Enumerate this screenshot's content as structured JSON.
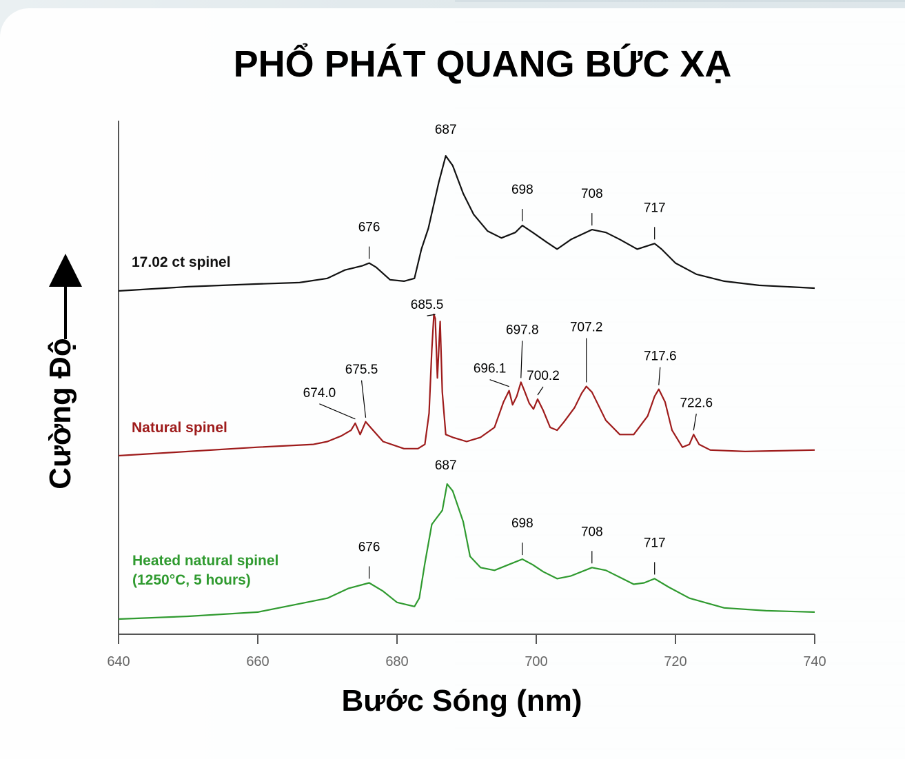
{
  "chart_data": {
    "type": "line",
    "title": "PHỔ PHÁT QUANG BỨC XẠ",
    "xlabel": "Bước Sóng (nm)",
    "ylabel": "Cường Độ",
    "xlim": [
      640,
      740
    ],
    "x_ticks": [
      "640",
      "660",
      "680",
      "700",
      "720",
      "740"
    ],
    "grid": false,
    "series": [
      {
        "name": "17.02 ct spinel",
        "color": "#111111",
        "label_lines": [
          "17.02 ct spinel"
        ],
        "points": [
          [
            640,
            0.0
          ],
          [
            650,
            0.03
          ],
          [
            660,
            0.05
          ],
          [
            666,
            0.06
          ],
          [
            670,
            0.09
          ],
          [
            672.5,
            0.15
          ],
          [
            675,
            0.18
          ],
          [
            676,
            0.2
          ],
          [
            677,
            0.17
          ],
          [
            679,
            0.08
          ],
          [
            681,
            0.07
          ],
          [
            682.5,
            0.09
          ],
          [
            683.5,
            0.3
          ],
          [
            684.5,
            0.45
          ],
          [
            686,
            0.78
          ],
          [
            687,
            0.97
          ],
          [
            688,
            0.9
          ],
          [
            689.5,
            0.7
          ],
          [
            691,
            0.55
          ],
          [
            693,
            0.43
          ],
          [
            695,
            0.38
          ],
          [
            697,
            0.42
          ],
          [
            698,
            0.47
          ],
          [
            699.5,
            0.42
          ],
          [
            701.5,
            0.35
          ],
          [
            703,
            0.3
          ],
          [
            705,
            0.37
          ],
          [
            708,
            0.44
          ],
          [
            710,
            0.42
          ],
          [
            712,
            0.37
          ],
          [
            714.5,
            0.3
          ],
          [
            717,
            0.34
          ],
          [
            718,
            0.3
          ],
          [
            720,
            0.2
          ],
          [
            723,
            0.12
          ],
          [
            727,
            0.07
          ],
          [
            732,
            0.04
          ],
          [
            740,
            0.02
          ]
        ],
        "peaks": [
          {
            "label": "676",
            "x": 676
          },
          {
            "label": "687",
            "x": 687
          },
          {
            "label": "698",
            "x": 698
          },
          {
            "label": "708",
            "x": 708
          },
          {
            "label": "717",
            "x": 717
          }
        ]
      },
      {
        "name": "Natural spinel",
        "color": "#9e1b1b",
        "label_lines": [
          "Natural spinel"
        ],
        "points": [
          [
            640,
            0.0
          ],
          [
            650,
            0.03
          ],
          [
            660,
            0.06
          ],
          [
            668,
            0.08
          ],
          [
            670,
            0.1
          ],
          [
            672,
            0.14
          ],
          [
            673.4,
            0.18
          ],
          [
            674,
            0.23
          ],
          [
            674.7,
            0.15
          ],
          [
            675.5,
            0.24
          ],
          [
            676.2,
            0.2
          ],
          [
            678,
            0.1
          ],
          [
            681,
            0.05
          ],
          [
            683,
            0.05
          ],
          [
            684,
            0.08
          ],
          [
            684.6,
            0.3
          ],
          [
            685,
            0.75
          ],
          [
            685.3,
            1.0
          ],
          [
            685.5,
            0.97
          ],
          [
            685.8,
            0.55
          ],
          [
            686.2,
            0.95
          ],
          [
            686.5,
            0.45
          ],
          [
            687,
            0.15
          ],
          [
            688,
            0.13
          ],
          [
            690,
            0.1
          ],
          [
            692,
            0.13
          ],
          [
            694,
            0.2
          ],
          [
            695.3,
            0.38
          ],
          [
            696.1,
            0.46
          ],
          [
            696.6,
            0.36
          ],
          [
            697.2,
            0.42
          ],
          [
            697.8,
            0.52
          ],
          [
            698.3,
            0.46
          ],
          [
            699,
            0.37
          ],
          [
            699.6,
            0.33
          ],
          [
            700.2,
            0.4
          ],
          [
            701,
            0.32
          ],
          [
            702,
            0.2
          ],
          [
            703,
            0.18
          ],
          [
            704,
            0.24
          ],
          [
            705.5,
            0.34
          ],
          [
            706.5,
            0.44
          ],
          [
            707.2,
            0.49
          ],
          [
            708,
            0.45
          ],
          [
            709,
            0.35
          ],
          [
            710,
            0.25
          ],
          [
            712,
            0.15
          ],
          [
            714,
            0.15
          ],
          [
            716,
            0.28
          ],
          [
            717,
            0.42
          ],
          [
            717.6,
            0.47
          ],
          [
            718.5,
            0.38
          ],
          [
            719.5,
            0.18
          ],
          [
            721,
            0.06
          ],
          [
            722,
            0.08
          ],
          [
            722.6,
            0.15
          ],
          [
            723.4,
            0.08
          ],
          [
            725,
            0.04
          ],
          [
            730,
            0.03
          ],
          [
            740,
            0.04
          ]
        ],
        "peaks": [
          {
            "label": "674.0",
            "x": 674.0
          },
          {
            "label": "675.5",
            "x": 675.5
          },
          {
            "label": "685.5",
            "x": 685.5
          },
          {
            "label": "696.1",
            "x": 696.1
          },
          {
            "label": "697.8",
            "x": 697.8
          },
          {
            "label": "700.2",
            "x": 700.2
          },
          {
            "label": "707.2",
            "x": 707.2
          },
          {
            "label": "717.6",
            "x": 717.6
          },
          {
            "label": "722.6",
            "x": 722.6
          }
        ]
      },
      {
        "name": "Heated natural spinel (1250°C, 5 hours)",
        "color": "#2f9a2f",
        "label_lines": [
          "Heated natural spinel",
          "(1250°C, 5 hours)"
        ],
        "points": [
          [
            640,
            0.0
          ],
          [
            650,
            0.02
          ],
          [
            660,
            0.05
          ],
          [
            665,
            0.1
          ],
          [
            670,
            0.15
          ],
          [
            673,
            0.22
          ],
          [
            676,
            0.26
          ],
          [
            678,
            0.2
          ],
          [
            680,
            0.12
          ],
          [
            682.5,
            0.09
          ],
          [
            683.2,
            0.15
          ],
          [
            684,
            0.4
          ],
          [
            685,
            0.68
          ],
          [
            686.5,
            0.78
          ],
          [
            687.2,
            0.97
          ],
          [
            688,
            0.92
          ],
          [
            689.5,
            0.7
          ],
          [
            690.5,
            0.45
          ],
          [
            692,
            0.37
          ],
          [
            694,
            0.35
          ],
          [
            696,
            0.39
          ],
          [
            698,
            0.43
          ],
          [
            699.5,
            0.39
          ],
          [
            701,
            0.34
          ],
          [
            703,
            0.29
          ],
          [
            705,
            0.31
          ],
          [
            708,
            0.37
          ],
          [
            710,
            0.35
          ],
          [
            712,
            0.3
          ],
          [
            714,
            0.25
          ],
          [
            715.5,
            0.26
          ],
          [
            717,
            0.29
          ],
          [
            719,
            0.23
          ],
          [
            722,
            0.15
          ],
          [
            727,
            0.08
          ],
          [
            733,
            0.06
          ],
          [
            740,
            0.05
          ]
        ],
        "peaks": [
          {
            "label": "676",
            "x": 676
          },
          {
            "label": "687",
            "x": 687
          },
          {
            "label": "698",
            "x": 698
          },
          {
            "label": "708",
            "x": 708
          },
          {
            "label": "717",
            "x": 717
          }
        ]
      }
    ]
  }
}
